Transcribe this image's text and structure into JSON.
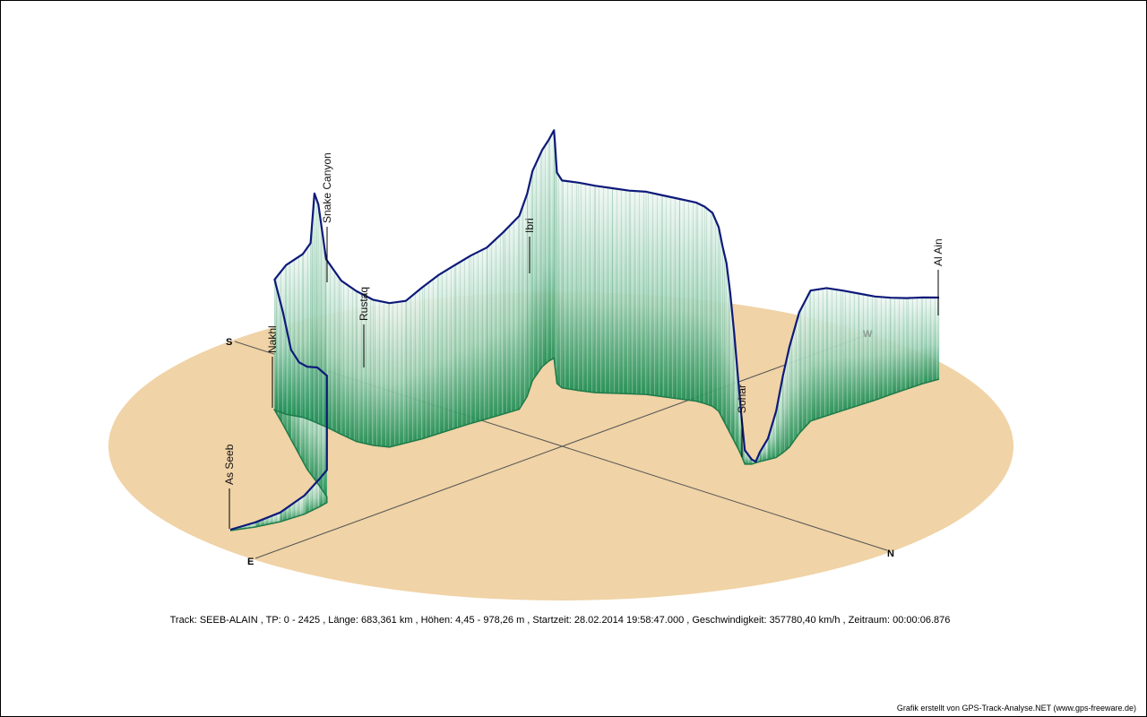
{
  "chart_data": {
    "type": "line",
    "title": "",
    "subtitle": "",
    "directions": [
      "S",
      "W",
      "N",
      "E"
    ],
    "waypoints": [
      {
        "name": "As Seeb"
      },
      {
        "name": "Nakhl"
      },
      {
        "name": "Snake Canyon"
      },
      {
        "name": "Rustaq"
      },
      {
        "name": "Ibri"
      },
      {
        "name": "Sohar"
      },
      {
        "name": "Al Ain"
      }
    ],
    "series": [
      {
        "values": [
          [
            0,
            4
          ],
          [
            3,
            20
          ],
          [
            6,
            40
          ],
          [
            9,
            80
          ],
          [
            11,
            120
          ],
          [
            12,
            140
          ],
          [
            13,
            520
          ],
          [
            15,
            495
          ],
          [
            17,
            440
          ],
          [
            19,
            395
          ],
          [
            21,
            385
          ],
          [
            23,
            480
          ],
          [
            25,
            560
          ],
          [
            27,
            640
          ],
          [
            29,
            700
          ],
          [
            30,
            760
          ],
          [
            30.5,
            980
          ],
          [
            31,
            940
          ],
          [
            32,
            720
          ],
          [
            34,
            660
          ],
          [
            36,
            645
          ],
          [
            38,
            625
          ],
          [
            40,
            618
          ],
          [
            42,
            610
          ],
          [
            44,
            650
          ],
          [
            46,
            680
          ],
          [
            48,
            700
          ],
          [
            50,
            720
          ],
          [
            52,
            735
          ],
          [
            54,
            780
          ],
          [
            56,
            830
          ],
          [
            58,
            870
          ],
          [
            60,
            900
          ],
          [
            62,
            930
          ],
          [
            63,
            948
          ],
          [
            64,
            978
          ],
          [
            65,
            960
          ],
          [
            66,
            930
          ],
          [
            67,
            905
          ],
          [
            68,
            890
          ],
          [
            70,
            892
          ],
          [
            72,
            888
          ],
          [
            74,
            880
          ],
          [
            76,
            872
          ],
          [
            78,
            870
          ],
          [
            80,
            864
          ],
          [
            82,
            858
          ],
          [
            84,
            852
          ],
          [
            85,
            845
          ],
          [
            86,
            830
          ],
          [
            87,
            790
          ],
          [
            88,
            740
          ],
          [
            89,
            700
          ],
          [
            90,
            600
          ],
          [
            91,
            460
          ],
          [
            92,
            300
          ],
          [
            93,
            160
          ],
          [
            94,
            60
          ],
          [
            95,
            20
          ],
          [
            95.5,
            5
          ],
          [
            96,
            40
          ],
          [
            97,
            90
          ],
          [
            98,
            200
          ],
          [
            99,
            330
          ],
          [
            100,
            430
          ],
          [
            102,
            520
          ],
          [
            104,
            560
          ],
          [
            106,
            548
          ],
          [
            108,
            515
          ],
          [
            110,
            480
          ],
          [
            112,
            445
          ],
          [
            114,
            415
          ],
          [
            116,
            390
          ],
          [
            118,
            370
          ],
          [
            120,
            350
          ]
        ]
      }
    ],
    "values_note_units": "",
    "caption": "Track: SEEB-ALAIN  ,  TP: 0 - 2425  ,  Länge: 683,361 km  ,  Höhen: 4,45 - 978,26 m  ,  Startzeit: 28.02.2014 19:58:47.000  ,  Geschwindigkeit: 357780,40 km/h  ,  Zeitraum: 00:00:06.876",
    "credit": "Grafik erstellt von GPS-Track-Analyse.NET (www.gps-freeware.de)",
    "colors": {
      "ground": "#f0d3a6",
      "line": "#0d1a7a",
      "curtain_top": "#eef7f3",
      "curtain_bottom": "#1f8f55",
      "axis": "#555555"
    }
  }
}
